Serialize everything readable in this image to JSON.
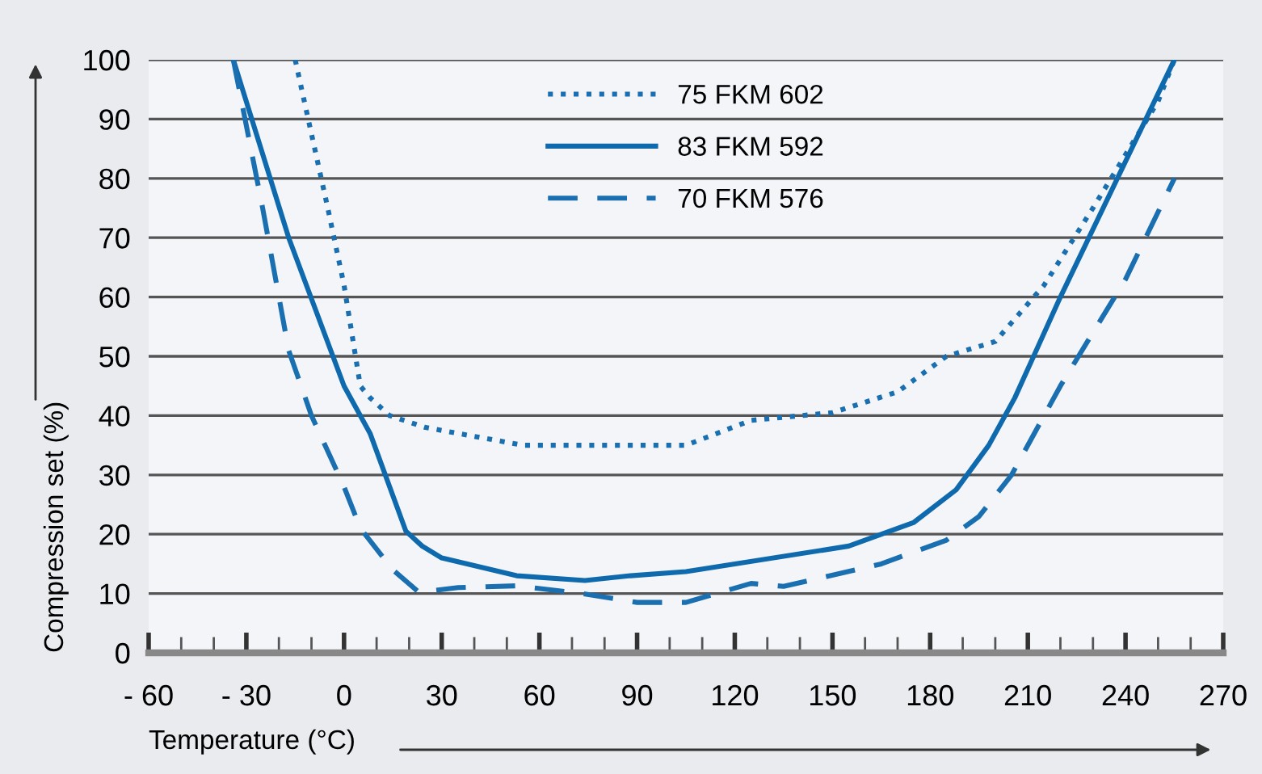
{
  "chart_data": {
    "type": "line",
    "xlabel": "Temperature (°C)",
    "ylabel": "Compression set (%)",
    "xlim": [
      -60,
      270
    ],
    "ylim": [
      0,
      100
    ],
    "xticks": [
      {
        "value": -60,
        "label": "- 60"
      },
      {
        "value": -30,
        "label": "- 30"
      },
      0,
      30,
      60,
      90,
      120,
      150,
      180,
      210,
      240,
      270
    ],
    "yticks": [
      0,
      10,
      20,
      30,
      40,
      50,
      60,
      70,
      80,
      90,
      100
    ],
    "grid": "y",
    "legend": "top",
    "marker": "none",
    "series": [
      {
        "name": "75 FKM 602",
        "color": "#1a6fb0",
        "line_style": "dotted",
        "x": [
          -15,
          -5,
          0,
          5,
          8,
          14,
          25,
          35,
          55,
          75,
          105,
          125,
          150,
          170,
          185,
          200,
          215,
          230,
          250,
          255
        ],
        "values": [
          100,
          75,
          62,
          45,
          43,
          40,
          38,
          37,
          35,
          35,
          35,
          39.2,
          40.5,
          44,
          50,
          52.5,
          62,
          75,
          93,
          100
        ]
      },
      {
        "name": "83 FKM 592",
        "color": "#0f6aad",
        "line_style": "solid",
        "x": [
          -34,
          -17,
          0,
          8,
          19,
          24,
          30,
          53,
          74,
          88,
          105,
          155,
          175,
          188,
          198,
          206,
          220,
          255
        ],
        "values": [
          100,
          70,
          45,
          37,
          20.5,
          18,
          16,
          13,
          12.2,
          13,
          13.7,
          18,
          22,
          27.5,
          35,
          43,
          60,
          100
        ]
      },
      {
        "name": "70 FKM 576",
        "color": "#1a6fb0",
        "line_style": "dashed",
        "x": [
          -34,
          -25,
          -17,
          -10,
          0,
          5,
          15,
          23,
          35,
          53,
          73,
          90,
          105,
          125,
          135,
          165,
          185,
          195,
          205,
          220,
          240,
          255
        ],
        "values": [
          100,
          75,
          51,
          40,
          28,
          21,
          14,
          10.2,
          11,
          11.3,
          10,
          8.5,
          8.5,
          11.7,
          11.2,
          15,
          19,
          23,
          30,
          45,
          63,
          80
        ]
      }
    ]
  }
}
